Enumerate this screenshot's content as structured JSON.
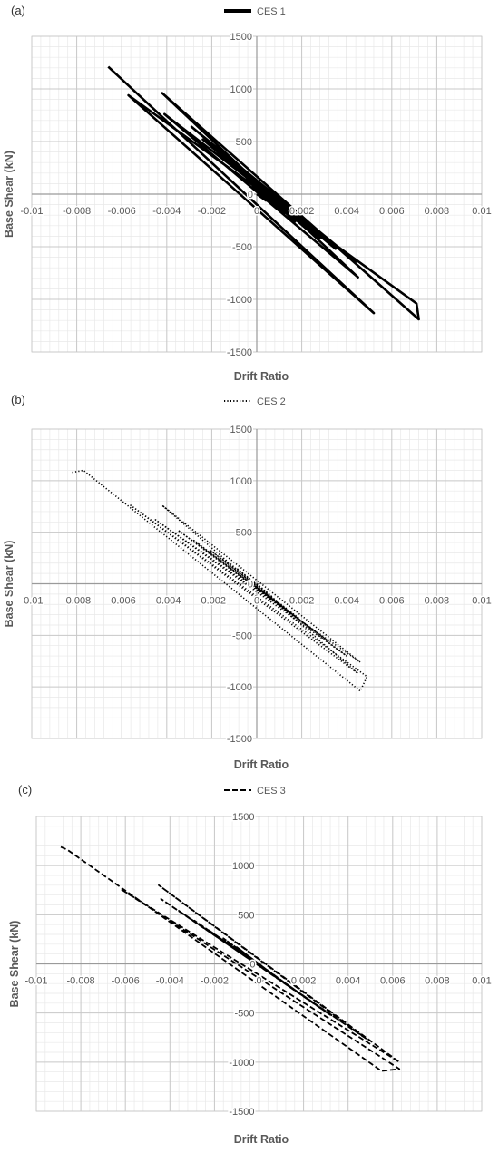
{
  "chart_data": [
    {
      "type": "line",
      "panel": "(a)",
      "xlabel": "Drift Ratio",
      "ylabel": "Base Shear (kN)",
      "xlim": [
        -0.01,
        0.01
      ],
      "ylim": [
        -1500,
        1500
      ],
      "x_ticks": [
        "-0.01",
        "-0.008",
        "-0.006",
        "-0.004",
        "-0.002",
        "0",
        "0.002",
        "0.004",
        "0.006",
        "0.008",
        "0.01"
      ],
      "y_ticks": [
        "1500",
        "1000",
        "500",
        "0",
        "-500",
        "-1000",
        "-1500"
      ],
      "grid": true,
      "legend_position": "top",
      "series": [
        {
          "name": "CES 1",
          "line_style": "solid",
          "color": "#000000",
          "x": [
            -0.0066,
            0.0052,
            -0.0057,
            0.0071,
            0.0072,
            -0.0042,
            0.0045,
            -0.0041,
            0.0044,
            -0.0029,
            0.0035,
            -0.0024,
            0.0028,
            -0.0018,
            0.0022,
            -0.0013,
            0.0017,
            -0.0009,
            0.0012,
            -0.0005,
            0.0008,
            -0.0002,
            0.0004,
            0.0
          ],
          "y": [
            1210,
            -1130,
            940,
            -1040,
            -1190,
            960,
            -790,
            760,
            -640,
            640,
            -520,
            520,
            -420,
            420,
            -330,
            330,
            -260,
            250,
            -190,
            170,
            -120,
            90,
            -60,
            0
          ]
        }
      ]
    },
    {
      "type": "line",
      "panel": "(b)",
      "xlabel": "Drift Ratio",
      "ylabel": "Base Shear (kN)",
      "xlim": [
        -0.01,
        0.01
      ],
      "ylim": [
        -1500,
        1500
      ],
      "x_ticks": [
        "-0.01",
        "-0.008",
        "-0.006",
        "-0.004",
        "-0.002",
        "0",
        "0.002",
        "0.004",
        "0.006",
        "0.008",
        "0.01"
      ],
      "y_ticks": [
        "1500",
        "1000",
        "500",
        "0",
        "-500",
        "-1000",
        "-1500"
      ],
      "grid": true,
      "legend_position": "top",
      "series": [
        {
          "name": "CES 2",
          "line_style": "dotted",
          "color": "#000000",
          "x": [
            -0.0082,
            -0.0077,
            0.0046,
            0.0049,
            -0.0056,
            0.0045,
            -0.0042,
            0.0046,
            -0.0045,
            0.004,
            -0.0035,
            0.0032,
            -0.0028,
            0.0025,
            -0.0021,
            0.0019,
            -0.0015,
            0.0013,
            -0.0009,
            0.0007,
            0.0
          ],
          "y": [
            1080,
            1100,
            -1040,
            -900,
            760,
            -870,
            760,
            -760,
            620,
            -700,
            520,
            -560,
            420,
            -450,
            330,
            -340,
            240,
            -240,
            150,
            -130,
            0
          ]
        }
      ]
    },
    {
      "type": "line",
      "panel": "(c)",
      "xlabel": "Drift Ratio",
      "ylabel": "Base Shear (kN)",
      "xlim": [
        -0.01,
        0.01
      ],
      "ylim": [
        -1500,
        1500
      ],
      "x_ticks": [
        "-0.01",
        "-0.008",
        "-0.006",
        "-0.004",
        "-0.002",
        "0",
        "0.002",
        "0.004",
        "0.006",
        "0.008",
        "0.01"
      ],
      "y_ticks": [
        "1500",
        "1000",
        "500",
        "0",
        "-500",
        "-1000",
        "-1500"
      ],
      "grid": true,
      "legend_position": "top",
      "series": [
        {
          "name": "CES 3",
          "line_style": "dashed",
          "color": "#000000",
          "x": [
            -0.0089,
            -0.0086,
            0.0055,
            0.0063,
            -0.0062,
            0.0063,
            -0.0045,
            0.0048,
            -0.0044,
            0.0039,
            -0.0036,
            0.0032,
            -0.0029,
            0.0026,
            -0.0023,
            0.002,
            -0.0016,
            0.0014,
            -0.001,
            0.0008,
            0.0
          ],
          "y": [
            1190,
            1160,
            -1090,
            -1070,
            760,
            -1000,
            800,
            -760,
            660,
            -620,
            540,
            -520,
            440,
            -420,
            350,
            -330,
            260,
            -240,
            170,
            -140,
            0
          ]
        }
      ]
    }
  ]
}
